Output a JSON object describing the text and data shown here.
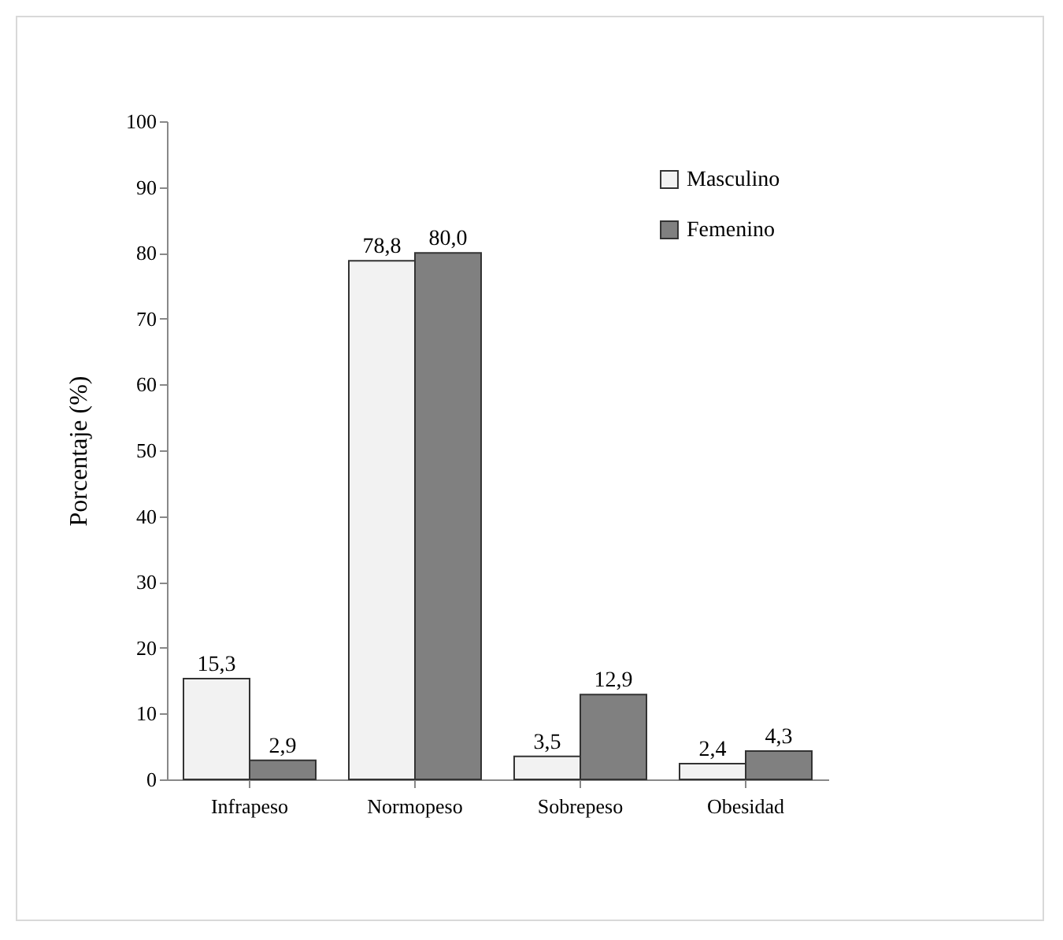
{
  "chart_data": {
    "type": "bar",
    "ylabel": "Porcentaje (%)",
    "categories": [
      "Infrapeso",
      "Normopeso",
      "Sobrepeso",
      "Obesidad"
    ],
    "series": [
      {
        "name": "Masculino",
        "color": "#f2f2f2",
        "values": [
          15.3,
          78.8,
          3.5,
          2.4
        ],
        "value_labels": [
          "15,3",
          "78,8",
          "3,5",
          "2,4"
        ]
      },
      {
        "name": "Femenino",
        "color": "#808080",
        "values": [
          2.9,
          80.0,
          12.9,
          4.3
        ],
        "value_labels": [
          "2,9",
          "80,0",
          "12,9",
          "4,3"
        ]
      }
    ],
    "ylim": [
      0,
      100
    ],
    "yticks": [
      0,
      10,
      20,
      30,
      40,
      50,
      60,
      70,
      80,
      90,
      100
    ],
    "grid": false,
    "legend": "top right"
  }
}
